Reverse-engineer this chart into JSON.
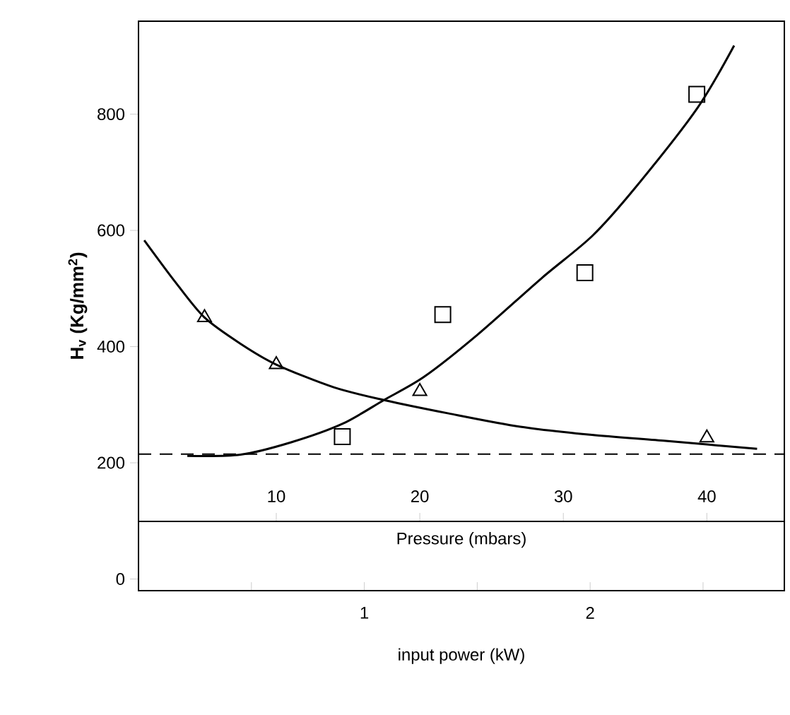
{
  "chart_data": {
    "type": "scatter",
    "xlabel": "Pressure (mbars)",
    "ylabel": "H$_{v}$ (Kg/mm$^{2}$)",
    "x2label": "input power (kW)",
    "xlim": [
      0.4,
      45.4
    ],
    "xticks": [
      10,
      20,
      30,
      40
    ],
    "x2lim": [
      0,
      2.86
    ],
    "x2ticks": [
      {
        "value": 0.5,
        "label": null
      },
      1,
      {
        "value": 1.5,
        "label": null
      },
      2,
      {
        "value": 2.5,
        "label": null
      }
    ],
    "ylim": [
      -20,
      960
    ],
    "yticks": [
      0,
      200,
      400,
      600,
      800
    ],
    "series": [
      {
        "marker": "triangle",
        "color": "#000000",
        "x": [
          5,
          10,
          20,
          40
        ],
        "values": [
          450,
          369,
          323,
          243
        ]
      },
      {
        "marker": "square",
        "color": "#000000",
        "x": [
          14.6,
          21.6,
          31.5,
          39.3
        ],
        "values": [
          245,
          455,
          527,
          834
        ]
      },
      {
        "type": "line",
        "marker": "none",
        "color": "#000000",
        "x": [
          0.8,
          3,
          5,
          7.5,
          10,
          14,
          17.5,
          22,
          27,
          32,
          37,
          43.5
        ],
        "values": [
          583,
          510,
          450,
          405,
          369,
          330,
          308,
          285,
          262,
          248,
          238,
          224
        ]
      },
      {
        "type": "line",
        "marker": "none",
        "color": "#000000",
        "x": [
          3.8,
          7.5,
          11,
          14.6,
          17.5,
          20.3,
          24,
          28.5,
          32,
          35,
          39.3,
          41.9
        ],
        "values": [
          212,
          214,
          235,
          267,
          308,
          348,
          420,
          518,
          590,
          673,
          809,
          918
        ]
      }
    ],
    "ref_lines": [
      {
        "axis": "y",
        "value": 215,
        "line_style": "dashed",
        "color": "#000000"
      }
    ]
  }
}
